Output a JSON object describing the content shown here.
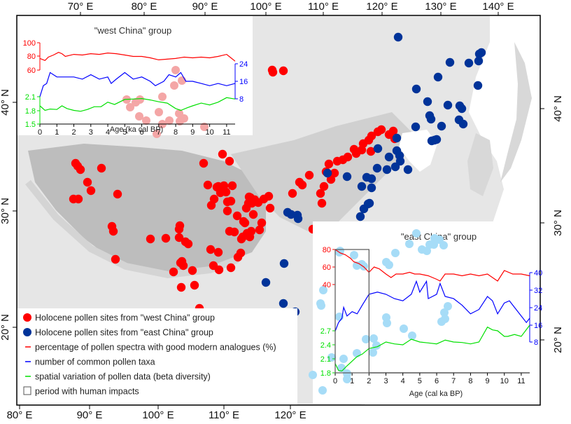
{
  "map": {
    "frame": {
      "lon_min": 80.3,
      "lon_max": 127.6,
      "lat_min": 15.5,
      "lat_max": 45.2
    },
    "top_axis_labels": [
      "70° E",
      "80° E",
      "90° E",
      "100° E",
      "110° E",
      "120° E",
      "130° E",
      "140° E"
    ],
    "bottom_axis_labels": [
      "80° E",
      "90° E",
      "100° E",
      "110° E",
      "120° E"
    ],
    "left_axis_labels": [
      "40° N",
      "30° N",
      "20° N"
    ],
    "right_axis_labels": [
      "40° N",
      "30° N",
      "20° N"
    ],
    "colors": {
      "west": "#ff0000",
      "east": "#003399",
      "land": "#c8c8c8",
      "sea": "#ffffff"
    },
    "west_sites": [
      [
        57,
        33
      ],
      [
        63,
        37
      ],
      [
        60,
        35
      ],
      [
        65,
        36
      ],
      [
        86,
        29
      ],
      [
        88,
        30
      ],
      [
        83,
        38
      ],
      [
        79,
        34
      ],
      [
        81,
        32
      ],
      [
        74,
        27
      ],
      [
        77,
        18
      ],
      [
        79,
        16
      ],
      [
        80,
        16
      ],
      [
        91,
        28
      ],
      [
        93,
        27
      ],
      [
        99,
        21
      ],
      [
        99,
        29
      ],
      [
        99,
        23
      ],
      [
        102,
        25
      ],
      [
        101,
        27
      ],
      [
        101,
        23
      ],
      [
        98,
        25
      ],
      [
        98,
        25
      ],
      [
        100,
        18
      ],
      [
        100,
        20
      ],
      [
        99,
        21
      ],
      [
        99,
        22
      ],
      [
        106,
        36
      ],
      [
        107,
        37
      ],
      [
        105,
        37
      ],
      [
        104,
        38
      ],
      [
        103,
        38
      ],
      [
        101,
        37
      ],
      [
        107,
        35
      ],
      [
        111,
        35
      ],
      [
        112,
        36
      ],
      [
        113,
        36
      ],
      [
        114,
        35
      ],
      [
        115,
        35
      ],
      [
        116,
        37
      ],
      [
        117,
        38
      ],
      [
        118,
        37
      ],
      [
        119,
        36
      ],
      [
        119,
        39
      ],
      [
        120,
        39
      ],
      [
        121,
        38
      ],
      [
        118,
        42
      ],
      [
        122,
        38
      ],
      [
        122,
        39
      ],
      [
        121,
        37
      ],
      [
        116,
        34
      ],
      [
        116,
        33
      ],
      [
        116,
        32
      ],
      [
        114,
        33
      ],
      [
        119,
        46
      ],
      [
        121,
        46
      ],
      [
        104,
        32
      ],
      [
        103,
        31
      ],
      [
        103,
        30
      ],
      [
        103,
        30
      ],
      [
        105,
        29
      ],
      [
        104,
        29
      ],
      [
        102,
        29
      ],
      [
        101,
        28
      ],
      [
        100,
        28
      ],
      [
        101,
        30
      ],
      [
        99,
        30
      ],
      [
        102,
        33
      ],
      [
        105,
        34
      ],
      [
        107,
        31
      ],
      [
        108,
        28
      ],
      [
        109,
        28
      ],
      [
        110,
        28
      ],
      [
        110,
        24
      ],
      [
        108,
        23
      ],
      [
        110,
        21
      ],
      [
        104,
        25
      ],
      [
        103,
        22
      ],
      [
        105,
        21
      ]
    ],
    "east_sites": [
      [
        123,
        51
      ],
      [
        128,
        47
      ],
      [
        131,
        45
      ],
      [
        132,
        46
      ],
      [
        133,
        47
      ],
      [
        133,
        48
      ],
      [
        133,
        45
      ],
      [
        126,
        45
      ],
      [
        126,
        40
      ],
      [
        125,
        42
      ],
      [
        126,
        39
      ],
      [
        127,
        39
      ],
      [
        128,
        38
      ],
      [
        129,
        40
      ],
      [
        130,
        40
      ],
      [
        130,
        39
      ],
      [
        130,
        38
      ],
      [
        124,
        38
      ],
      [
        124,
        37
      ],
      [
        122,
        36
      ],
      [
        121,
        36
      ],
      [
        124,
        34
      ],
      [
        122,
        33
      ],
      [
        119,
        36
      ],
      [
        118,
        35
      ],
      [
        117,
        34
      ],
      [
        117,
        33
      ],
      [
        120,
        33
      ],
      [
        121,
        32
      ],
      [
        120,
        31
      ],
      [
        120,
        31
      ],
      [
        122,
        35
      ],
      [
        124,
        35
      ],
      [
        122,
        32
      ],
      [
        110,
        30
      ],
      [
        111,
        30
      ],
      [
        112,
        30
      ],
      [
        112,
        29
      ],
      [
        115,
        30
      ],
      [
        115,
        29
      ],
      [
        117,
        27
      ],
      [
        118,
        27
      ],
      [
        116,
        26
      ],
      [
        113,
        26
      ],
      [
        110,
        24
      ],
      [
        113,
        22
      ],
      [
        114,
        21
      ]
    ],
    "lightblue_sites": [
      [
        113,
        26
      ],
      [
        110,
        24
      ],
      [
        117,
        27
      ]
    ]
  },
  "inset_west": {
    "title": "\"west China\" group",
    "xlabel": "Age (ka cal BP)",
    "x_ticks": [
      "0",
      "1",
      "2",
      "3",
      "4",
      "5",
      "6",
      "7",
      "8",
      "9",
      "10",
      "11"
    ],
    "left_top_ticks": [
      "100",
      "80",
      "60"
    ],
    "left_bottom_ticks": [
      "2.1",
      "1.8",
      "1.5"
    ],
    "right_ticks": [
      "24",
      "16",
      "8"
    ],
    "point_color": "#f4a6a6"
  },
  "inset_east": {
    "title": "\"east China\" group",
    "xlabel": "Age (cal ka BP)",
    "x_ticks": [
      "0",
      "1",
      "2",
      "3",
      "4",
      "5",
      "6",
      "7",
      "8",
      "9",
      "10",
      "11"
    ],
    "left_top_ticks": [
      "80",
      "60",
      "40"
    ],
    "left_bottom_ticks": [
      "2.7",
      "2.4",
      "2.1",
      "1.8"
    ],
    "right_ticks": [
      "40",
      "32",
      "24",
      "16",
      "8"
    ],
    "human_impact_period": [
      0,
      2
    ],
    "point_color": "#a6dcf7"
  },
  "chart_data": [
    {
      "type": "line",
      "title": "\"west China\" group",
      "xlabel": "Age (ka cal BP)",
      "xlim": [
        0,
        11.5
      ],
      "series": [
        {
          "name": "percentage of pollen spectra with good modern analogues (%)",
          "axis": "left-top",
          "ylim": [
            60,
            100
          ],
          "color": "#ff0000",
          "x": [
            0,
            0.3,
            0.5,
            0.8,
            1.1,
            1.3,
            1.5,
            2,
            2.5,
            3,
            3.5,
            4,
            4.5,
            5,
            5.5,
            6,
            6.5,
            7,
            7.5,
            8,
            8.5,
            9,
            9.5,
            10,
            10.5,
            11,
            11.3,
            11.5
          ],
          "y": [
            77,
            74,
            79,
            82,
            86,
            84,
            80,
            83,
            82,
            84,
            83,
            85,
            84,
            82,
            80,
            80,
            78,
            75,
            76,
            77,
            79,
            78,
            79,
            78,
            80,
            83,
            77,
            73
          ]
        },
        {
          "name": "number of common pollen taxa",
          "axis": "right",
          "ylim": [
            8,
            24
          ],
          "color": "#0000ff",
          "x": [
            0,
            0.2,
            0.4,
            0.6,
            0.8,
            1,
            1.5,
            2,
            2.5,
            3,
            3.5,
            4,
            4.2,
            4.5,
            5,
            5.5,
            6,
            6.5,
            6.8,
            7.3,
            7.6,
            8,
            8.3,
            8.6,
            9,
            9.5,
            10,
            10.5,
            11,
            11.5
          ],
          "y": [
            9,
            14,
            15,
            20,
            19,
            18,
            18,
            18,
            17,
            19,
            17,
            18,
            15,
            17,
            20,
            17,
            18,
            16,
            14,
            16,
            19,
            18,
            20,
            16,
            16,
            15,
            14,
            15,
            14,
            15
          ]
        },
        {
          "name": "spatial variation of pollen data (beta diversity)",
          "axis": "left-bottom",
          "ylim": [
            1.5,
            2.1
          ],
          "color": "#00e000",
          "x": [
            0,
            0.3,
            0.6,
            1,
            1.3,
            1.6,
            2,
            2.4,
            2.8,
            3.2,
            3.6,
            4,
            4.4,
            5,
            5.5,
            6,
            6.5,
            7,
            7.5,
            8,
            8.3,
            8.7,
            9,
            9.5,
            10,
            10.5,
            11,
            11.5
          ],
          "y": [
            1.9,
            1.8,
            1.83,
            1.82,
            1.9,
            1.84,
            1.8,
            1.78,
            1.82,
            1.88,
            1.88,
            1.98,
            1.93,
            2.04,
            2.05,
            2.06,
            2.03,
            1.99,
            1.96,
            1.84,
            1.8,
            1.86,
            1.9,
            1.96,
            1.92,
            1.98,
            2.08,
            2.05
          ]
        }
      ]
    },
    {
      "type": "line",
      "title": "\"east China\" group",
      "xlabel": "Age (cal ka BP)",
      "xlim": [
        0,
        11.5
      ],
      "series": [
        {
          "name": "percentage of pollen spectra with good modern analogues (%)",
          "axis": "left-top",
          "ylim": [
            40,
            80
          ],
          "color": "#ff0000",
          "x": [
            0,
            0.3,
            0.6,
            0.9,
            1.1,
            1.4,
            1.7,
            2,
            2.3,
            2.6,
            3,
            3.3,
            3.6,
            4,
            4.4,
            4.7,
            5,
            5.5,
            6,
            6.2,
            6.5,
            7,
            7.5,
            8,
            8.5,
            9,
            9.3,
            9.6,
            10,
            10.5,
            11,
            11.5
          ],
          "y": [
            80,
            76,
            74,
            70,
            66,
            64,
            60,
            54,
            60,
            58,
            52,
            48,
            52,
            52,
            54,
            52,
            52,
            50,
            46,
            44,
            52,
            52,
            50,
            52,
            50,
            52,
            48,
            44,
            56,
            52,
            52,
            50
          ]
        },
        {
          "name": "number of common pollen taxa",
          "axis": "right",
          "ylim": [
            8,
            40
          ],
          "color": "#0000ff",
          "x": [
            0,
            0.2,
            0.4,
            0.5,
            0.7,
            1,
            1.3,
            1.6,
            2,
            2.5,
            3,
            3.5,
            4,
            4.5,
            4.8,
            5,
            5.4,
            5.5,
            6,
            6.2,
            6.5,
            7,
            7.5,
            8,
            8.5,
            9,
            9.3,
            9.6,
            10,
            10.3,
            10.6,
            11,
            11.3,
            11.5
          ],
          "y": [
            13,
            17,
            19,
            24,
            20,
            22,
            21,
            25,
            30,
            31,
            30,
            28,
            27,
            30,
            36,
            31,
            36,
            28,
            30,
            35,
            29,
            28,
            25,
            21,
            23,
            29,
            27,
            21,
            26,
            27,
            24,
            20,
            17,
            19
          ]
        },
        {
          "name": "spatial variation of pollen data (beta diversity)",
          "axis": "left-bottom",
          "ylim": [
            1.8,
            2.7
          ],
          "color": "#00e000",
          "x": [
            0,
            0.2,
            0.4,
            0.7,
            1,
            1.3,
            1.6,
            2,
            2.5,
            3,
            3.5,
            4,
            4.5,
            5,
            5.5,
            6,
            6.5,
            7,
            7.5,
            8,
            8.5,
            9,
            9.3,
            9.6,
            10,
            10.2,
            10.6,
            11,
            11.5
          ],
          "y": [
            2.0,
            1.85,
            1.84,
            1.95,
            2.05,
            2.15,
            2.2,
            2.32,
            2.36,
            2.46,
            2.42,
            2.4,
            2.52,
            2.46,
            2.44,
            2.42,
            2.5,
            2.46,
            2.45,
            2.42,
            2.46,
            2.78,
            2.72,
            2.7,
            2.58,
            2.58,
            2.62,
            2.58,
            2.82
          ]
        }
      ]
    }
  ],
  "legend": {
    "items": [
      {
        "type": "dot",
        "color": "#ff0000",
        "label": "Holocene pollen sites from \"west China\" group"
      },
      {
        "type": "dot",
        "color": "#003399",
        "label": "Holocene pollen sites from \"east China\" group"
      },
      {
        "type": "line",
        "color": "#ff0000",
        "label": "percentage of pollen spectra with good modern analogues (%)"
      },
      {
        "type": "line",
        "color": "#0000ff",
        "label": "number of common pollen taxa"
      },
      {
        "type": "line",
        "color": "#00e000",
        "label": "spatial variation of pollen data (beta diversity)"
      },
      {
        "type": "box",
        "color": "#555555",
        "label": "period with human impacts"
      }
    ]
  }
}
